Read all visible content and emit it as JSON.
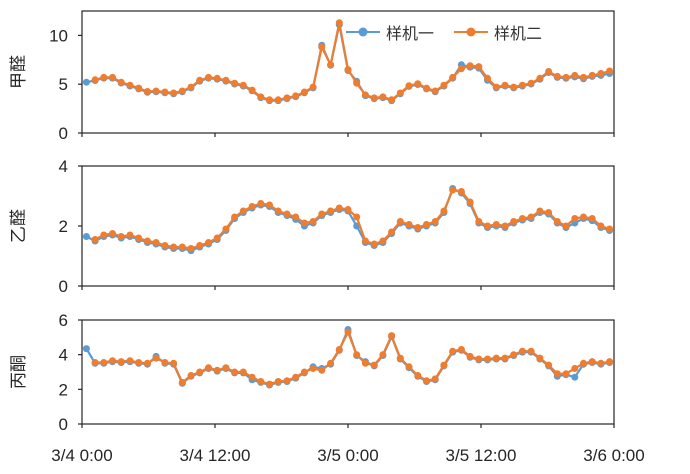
{
  "legend": {
    "items": [
      {
        "label": "样机一",
        "color": "#5B9BD5"
      },
      {
        "label": "样机二",
        "color": "#ED7D31"
      }
    ]
  },
  "axis": {
    "x_tick_labels": [
      "3/4 0:00",
      "3/4 12:00",
      "3/5 0:00",
      "3/5 12:00",
      "3/6 0:00"
    ]
  },
  "colors": {
    "series1": "#5B9BD5",
    "series2": "#ED7D31",
    "axis_text": "#262626",
    "plot_border": "#262626"
  },
  "chart_data": [
    {
      "type": "line",
      "title": "",
      "ylabel": "甲醛",
      "ylim": [
        0,
        12.5
      ],
      "yticks": [
        0,
        5,
        10
      ],
      "x_tick_labels": [
        "3/4 0:00",
        "3/4 12:00",
        "3/5 0:00",
        "3/5 12:00",
        "3/6 0:00"
      ],
      "n_points": 61,
      "grid": false,
      "legend_position": "top-right-inside",
      "series": [
        {
          "name": "样机一",
          "color": "#5B9BD5",
          "values": [
            5.2,
            5.38,
            5.62,
            5.62,
            5.12,
            4.82,
            4.52,
            4.17,
            4.22,
            4.12,
            4.02,
            4.22,
            4.62,
            5.32,
            5.62,
            5.52,
            5.32,
            5.02,
            4.82,
            4.32,
            3.62,
            3.32,
            3.32,
            3.52,
            3.72,
            4.12,
            4.62,
            9.0,
            6.95,
            11.1,
            6.4,
            5.3,
            3.82,
            3.52,
            3.62,
            3.32,
            4.02,
            4.77,
            4.97,
            4.52,
            4.22,
            4.82,
            5.62,
            7.0,
            6.75,
            6.65,
            5.4,
            4.62,
            4.82,
            4.62,
            4.82,
            5.02,
            5.5,
            6.2,
            5.7,
            5.6,
            5.75,
            5.55,
            5.8,
            5.9,
            6.1
          ]
        },
        {
          "name": "样机二",
          "color": "#ED7D31",
          "values": [
            null,
            5.45,
            5.7,
            5.7,
            5.2,
            4.9,
            4.6,
            4.25,
            4.3,
            4.2,
            4.1,
            4.3,
            4.7,
            5.4,
            5.7,
            5.6,
            5.4,
            5.1,
            4.9,
            4.4,
            3.7,
            3.4,
            3.4,
            3.6,
            3.8,
            4.2,
            4.7,
            8.8,
            7.0,
            11.3,
            6.5,
            5.1,
            3.9,
            3.6,
            3.7,
            3.4,
            4.1,
            4.85,
            5.05,
            4.6,
            4.3,
            4.9,
            5.7,
            6.6,
            6.9,
            6.8,
            5.6,
            4.7,
            4.9,
            4.7,
            4.9,
            5.1,
            5.6,
            6.3,
            5.8,
            5.7,
            5.9,
            5.7,
            5.9,
            6.1,
            6.35
          ]
        }
      ]
    },
    {
      "type": "line",
      "title": "",
      "ylabel": "乙醛",
      "ylim": [
        0,
        4
      ],
      "yticks": [
        0,
        2,
        4
      ],
      "x_tick_labels": [
        "3/4 0:00",
        "3/4 12:00",
        "3/5 0:00",
        "3/5 12:00",
        "3/6 0:00"
      ],
      "n_points": 61,
      "grid": false,
      "series": [
        {
          "name": "样机一",
          "color": "#5B9BD5",
          "values": [
            1.65,
            1.5,
            1.65,
            1.7,
            1.6,
            1.65,
            1.55,
            1.45,
            1.4,
            1.3,
            1.25,
            1.25,
            1.18,
            1.3,
            1.4,
            1.55,
            1.85,
            2.25,
            2.45,
            2.6,
            2.7,
            2.65,
            2.45,
            2.35,
            2.22,
            2.0,
            2.1,
            2.35,
            2.45,
            2.55,
            2.5,
            2.0,
            1.45,
            1.35,
            1.45,
            1.75,
            2.1,
            2.0,
            1.9,
            2.0,
            2.1,
            2.45,
            3.25,
            3.1,
            2.75,
            2.1,
            1.95,
            2.0,
            1.95,
            2.1,
            2.2,
            2.25,
            2.45,
            2.4,
            2.1,
            1.95,
            2.1,
            2.25,
            2.18,
            1.95,
            1.85
          ]
        },
        {
          "name": "样机二",
          "color": "#ED7D31",
          "values": [
            null,
            1.55,
            1.7,
            1.75,
            1.65,
            1.7,
            1.6,
            1.5,
            1.45,
            1.35,
            1.3,
            1.3,
            1.25,
            1.35,
            1.45,
            1.6,
            1.9,
            2.3,
            2.5,
            2.65,
            2.75,
            2.7,
            2.5,
            2.4,
            2.3,
            2.1,
            2.15,
            2.4,
            2.5,
            2.6,
            2.55,
            2.3,
            1.5,
            1.4,
            1.5,
            1.8,
            2.15,
            2.05,
            1.95,
            2.05,
            2.15,
            2.5,
            3.2,
            3.15,
            2.8,
            2.15,
            2.0,
            2.05,
            2.0,
            2.15,
            2.25,
            2.3,
            2.5,
            2.45,
            2.15,
            2.0,
            2.25,
            2.3,
            2.25,
            2.0,
            1.9
          ]
        }
      ]
    },
    {
      "type": "line",
      "title": "",
      "ylabel": "丙酮",
      "ylim": [
        0,
        6
      ],
      "yticks": [
        0,
        2,
        4,
        6
      ],
      "x_tick_labels": [
        "3/4 0:00",
        "3/4 12:00",
        "3/5 0:00",
        "3/5 12:00",
        "3/6 0:00"
      ],
      "n_points": 61,
      "grid": false,
      "series": [
        {
          "name": "样机一",
          "color": "#5B9BD5",
          "values": [
            4.35,
            3.5,
            3.5,
            3.6,
            3.55,
            3.6,
            3.5,
            3.45,
            3.9,
            3.5,
            3.45,
            2.35,
            2.75,
            2.95,
            3.2,
            3.05,
            3.2,
            2.95,
            2.95,
            2.55,
            2.4,
            2.25,
            2.4,
            2.45,
            2.65,
            2.95,
            3.3,
            3.2,
            3.45,
            4.25,
            5.45,
            3.95,
            3.6,
            3.35,
            3.95,
            5.05,
            3.75,
            3.25,
            2.75,
            2.45,
            2.55,
            3.35,
            4.15,
            4.25,
            3.85,
            3.7,
            3.7,
            3.75,
            3.75,
            3.95,
            4.15,
            4.15,
            3.75,
            3.35,
            2.75,
            2.85,
            2.7,
            3.45,
            3.55,
            3.45,
            3.55
          ]
        },
        {
          "name": "样机二",
          "color": "#ED7D31",
          "values": [
            null,
            3.55,
            3.55,
            3.65,
            3.6,
            3.65,
            3.55,
            3.5,
            3.8,
            3.55,
            3.5,
            2.4,
            2.8,
            3.0,
            3.25,
            3.1,
            3.25,
            3.0,
            3.0,
            2.7,
            2.45,
            2.3,
            2.45,
            2.5,
            2.7,
            3.0,
            3.2,
            3.1,
            3.5,
            4.3,
            5.3,
            4.0,
            3.5,
            3.4,
            4.0,
            5.1,
            3.8,
            3.3,
            2.8,
            2.5,
            2.6,
            3.4,
            4.2,
            4.3,
            3.9,
            3.75,
            3.75,
            3.8,
            3.8,
            4.0,
            4.2,
            4.2,
            3.8,
            3.4,
            2.9,
            2.9,
            3.2,
            3.5,
            3.6,
            3.5,
            3.6
          ]
        }
      ]
    }
  ]
}
